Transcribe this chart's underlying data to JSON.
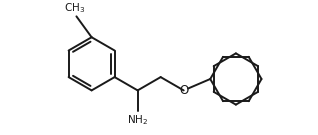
{
  "bg_color": "#ffffff",
  "line_color": "#1a1a1a",
  "line_width": 1.4,
  "text_color": "#1a1a1a",
  "font_size": 7.5,
  "fig_width": 3.18,
  "fig_height": 1.35,
  "dpi": 100
}
